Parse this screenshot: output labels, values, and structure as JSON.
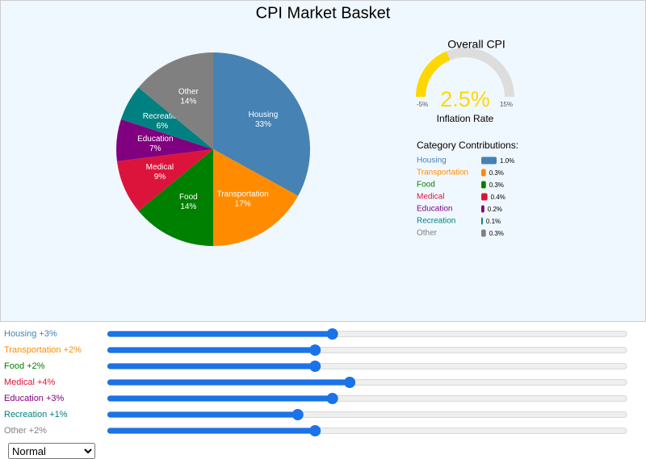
{
  "title": "CPI Market Basket",
  "pie": {
    "type": "pie",
    "categories": [
      "Housing",
      "Transportation",
      "Food",
      "Medical",
      "Education",
      "Recreation",
      "Other"
    ],
    "values": [
      33,
      17,
      14,
      9,
      7,
      6,
      14
    ],
    "value_labels": [
      "33%",
      "17%",
      "14%",
      "9%",
      "7%",
      "6%",
      "14%"
    ],
    "colors": [
      "#4682b4",
      "#ff8c00",
      "#008000",
      "#dc143c",
      "#800080",
      "#008080",
      "#808080"
    ]
  },
  "gauge": {
    "title": "Overall CPI",
    "value": 2.5,
    "value_label": "2.5%",
    "subtitle": "Inflation Rate",
    "lim": [
      {
        "value": -5,
        "label": "-5%"
      },
      {
        "value": 15,
        "label": "15%"
      }
    ],
    "color": "#ffd700"
  },
  "contributions": {
    "title": "Category Contributions:",
    "values": [
      1.0,
      0.3,
      0.3,
      0.4,
      0.2,
      0.1,
      0.3
    ],
    "value_labels": [
      "1.0%",
      "0.3%",
      "0.3%",
      "0.4%",
      "0.2%",
      "0.1%",
      "0.3%"
    ]
  },
  "sliders": {
    "lim": [
      -10,
      20
    ],
    "items": [
      {
        "label": "Housing +3%",
        "value": 3
      },
      {
        "label": "Transportation +2%",
        "value": 2
      },
      {
        "label": "Food +2%",
        "value": 2
      },
      {
        "label": "Medical +4%",
        "value": 4
      },
      {
        "label": "Education +3%",
        "value": 3
      },
      {
        "label": "Recreation +1%",
        "value": 1
      },
      {
        "label": "Other +2%",
        "value": 2
      }
    ]
  },
  "scenario": "Normal"
}
